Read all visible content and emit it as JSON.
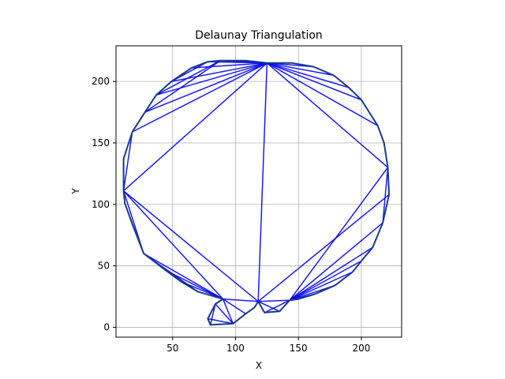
{
  "chart_data": {
    "type": "line",
    "title": "Delaunay Triangulation",
    "xlabel": "X",
    "ylabel": "Y",
    "xlim": [
      5,
      232
    ],
    "ylim": [
      -8,
      229
    ],
    "xticks": [
      50,
      100,
      150,
      200
    ],
    "yticks": [
      0,
      50,
      100,
      150,
      200
    ],
    "grid": true,
    "colors": {
      "edges": "#0000ff",
      "hull": "#1a3a8a",
      "grid": "#b0b0b0"
    },
    "points": [
      [
        88,
        217
      ],
      [
        108,
        217
      ],
      [
        125,
        215
      ],
      [
        145,
        215
      ],
      [
        162,
        212
      ],
      [
        178,
        205
      ],
      [
        190,
        195
      ],
      [
        200,
        185
      ],
      [
        213,
        164
      ],
      [
        218,
        150
      ],
      [
        221,
        130
      ],
      [
        222,
        108
      ],
      [
        217,
        85
      ],
      [
        209,
        65
      ],
      [
        200,
        54
      ],
      [
        193,
        45
      ],
      [
        179,
        34
      ],
      [
        163,
        27
      ],
      [
        150,
        23
      ],
      [
        143,
        22
      ],
      [
        135,
        13
      ],
      [
        123,
        12
      ],
      [
        118,
        21
      ],
      [
        115,
        16
      ],
      [
        108,
        11
      ],
      [
        98,
        3
      ],
      [
        80,
        2
      ],
      [
        78,
        7
      ],
      [
        84,
        19
      ],
      [
        90,
        23
      ],
      [
        70,
        29
      ],
      [
        57,
        37
      ],
      [
        45,
        46
      ],
      [
        27,
        60
      ],
      [
        24,
        68
      ],
      [
        18,
        84
      ],
      [
        12,
        101
      ],
      [
        11,
        111
      ],
      [
        11,
        137
      ],
      [
        18,
        159
      ],
      [
        28,
        175
      ],
      [
        37,
        189
      ],
      [
        49,
        200
      ],
      [
        65,
        211
      ],
      [
        78,
        216
      ]
    ],
    "hull": [
      0,
      1,
      2,
      3,
      4,
      5,
      6,
      7,
      8,
      9,
      10,
      11,
      12,
      13,
      14,
      15,
      16,
      17,
      18,
      19,
      20,
      21,
      22,
      23,
      24,
      25,
      26,
      27,
      28,
      29,
      30,
      31,
      32,
      33,
      34,
      35,
      36,
      37,
      38,
      39,
      40,
      41,
      42,
      43,
      44,
      0
    ],
    "edges": [
      [
        0,
        2
      ],
      [
        44,
        2
      ],
      [
        43,
        2
      ],
      [
        42,
        2
      ],
      [
        41,
        2
      ],
      [
        40,
        2
      ],
      [
        39,
        2
      ],
      [
        37,
        2
      ],
      [
        2,
        10
      ],
      [
        2,
        4
      ],
      [
        2,
        5
      ],
      [
        2,
        6
      ],
      [
        2,
        7
      ],
      [
        2,
        8
      ],
      [
        2,
        22
      ],
      [
        44,
        42
      ],
      [
        0,
        41
      ],
      [
        0,
        40
      ],
      [
        44,
        43
      ],
      [
        37,
        22
      ],
      [
        37,
        29
      ],
      [
        37,
        33
      ],
      [
        37,
        39
      ],
      [
        39,
        40
      ],
      [
        11,
        22
      ],
      [
        22,
        19
      ],
      [
        10,
        19
      ],
      [
        12,
        19
      ],
      [
        13,
        19
      ],
      [
        14,
        19
      ],
      [
        15,
        19
      ],
      [
        16,
        19
      ],
      [
        17,
        19
      ],
      [
        33,
        29
      ],
      [
        32,
        29
      ],
      [
        31,
        29
      ],
      [
        33,
        31
      ],
      [
        33,
        30
      ],
      [
        34,
        36
      ],
      [
        29,
        22
      ],
      [
        29,
        24
      ],
      [
        29,
        25
      ],
      [
        28,
        25
      ],
      [
        27,
        25
      ],
      [
        26,
        28
      ],
      [
        28,
        29
      ],
      [
        23,
        24
      ],
      [
        24,
        25
      ],
      [
        22,
        23
      ],
      [
        22,
        21
      ],
      [
        22,
        20
      ],
      [
        21,
        19
      ],
      [
        21,
        20
      ],
      [
        12,
        10
      ],
      [
        10,
        11
      ],
      [
        18,
        19
      ]
    ]
  }
}
